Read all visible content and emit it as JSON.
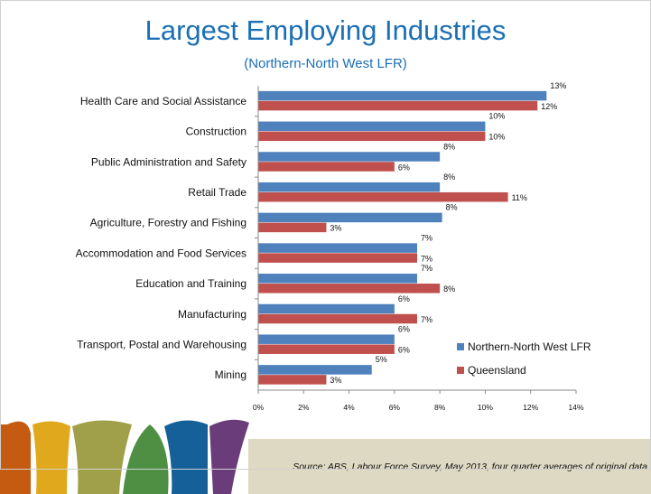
{
  "title": "Largest Employing Industries",
  "subtitle": "(Northern-North West LFR)",
  "source": "Source: ABS, Labour Force Survey, May 2013, four quarter averages of original data",
  "colors": {
    "title": "#1a6fb6",
    "series_1": "#4f81bd",
    "series_2": "#c0504d",
    "footer_band": "#ddd9c3"
  },
  "chart_data": {
    "type": "bar",
    "orientation": "horizontal",
    "categories": [
      "Health Care and Social Assistance",
      "Construction",
      "Public Administration and Safety",
      "Retail Trade",
      "Agriculture, Forestry and Fishing",
      "Accommodation and Food Services",
      "Education and Training",
      "Manufacturing",
      "Transport, Postal and Warehousing",
      "Mining"
    ],
    "series": [
      {
        "name": "Northern-North West LFR",
        "values": [
          12.7,
          10.0,
          8.0,
          8.0,
          8.1,
          7.0,
          7.0,
          6.0,
          6.0,
          5.0
        ],
        "labels": [
          "13%",
          "10%",
          "8%",
          "8%",
          "8%",
          "7%",
          "7%",
          "6%",
          "6%",
          "5%"
        ]
      },
      {
        "name": "Queensland",
        "values": [
          12.3,
          10.0,
          6.0,
          11.0,
          3.0,
          7.0,
          8.0,
          7.0,
          6.0,
          3.0
        ],
        "labels": [
          "12%",
          "10%",
          "6%",
          "11%",
          "3%",
          "7%",
          "8%",
          "7%",
          "6%",
          "3%"
        ]
      }
    ],
    "xlim": [
      0,
      14
    ],
    "xticks": [
      0,
      2,
      4,
      6,
      8,
      10,
      12,
      14
    ],
    "xtick_labels": [
      "0%",
      "2%",
      "4%",
      "6%",
      "8%",
      "10%",
      "12%",
      "14%"
    ],
    "grid": false,
    "legend_position": "bottom-right"
  }
}
